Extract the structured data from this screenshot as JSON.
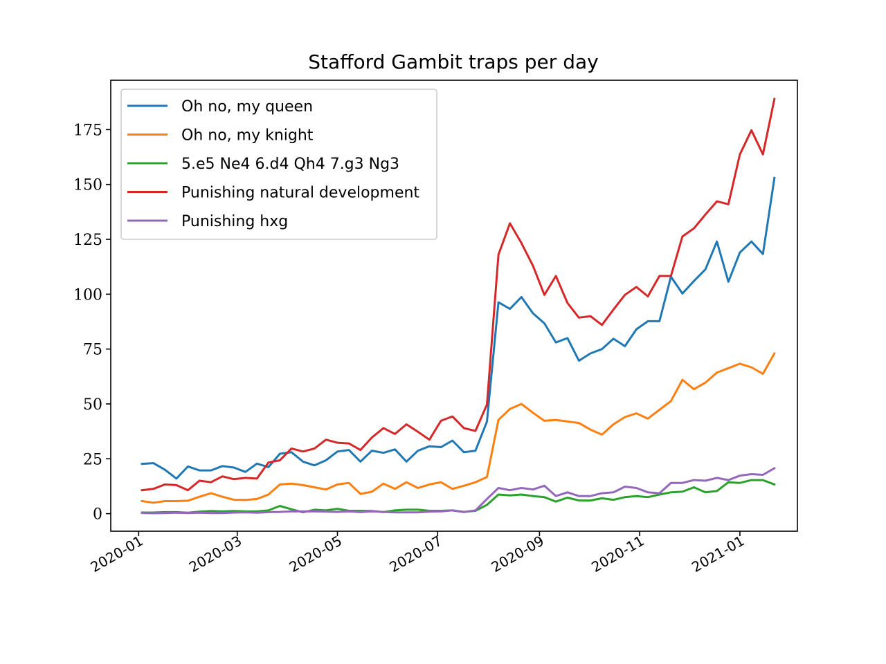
{
  "chart_data": {
    "type": "line",
    "title": "Stafford Gambit traps per day",
    "xlabel": "",
    "ylabel": "",
    "x_axis_type": "date",
    "xlim": [
      "2019-12-15",
      "2021-02-05"
    ],
    "ylim": [
      -8,
      197.5
    ],
    "x_ticks": [
      "2020-01-01",
      "2020-03-01",
      "2020-05-01",
      "2020-07-01",
      "2020-09-01",
      "2020-11-01",
      "2021-01-01"
    ],
    "x_tick_labels": [
      "2020-01",
      "2020-03",
      "2020-05",
      "2020-07",
      "2020-09",
      "2020-11",
      "2021-01"
    ],
    "y_ticks": [
      0,
      25,
      50,
      75,
      100,
      125,
      150,
      175
    ],
    "y_tick_labels": [
      "0",
      "25",
      "50",
      "75",
      "100",
      "125",
      "150",
      "175"
    ],
    "grid": false,
    "legend_position": "top-left",
    "x": [
      "2020-01-03",
      "2020-01-10",
      "2020-01-17",
      "2020-01-24",
      "2020-01-31",
      "2020-02-07",
      "2020-02-14",
      "2020-02-21",
      "2020-02-28",
      "2020-03-06",
      "2020-03-13",
      "2020-03-20",
      "2020-03-27",
      "2020-04-03",
      "2020-04-10",
      "2020-04-17",
      "2020-04-24",
      "2020-05-01",
      "2020-05-08",
      "2020-05-15",
      "2020-05-22",
      "2020-05-29",
      "2020-06-05",
      "2020-06-12",
      "2020-06-19",
      "2020-06-26",
      "2020-07-03",
      "2020-07-10",
      "2020-07-17",
      "2020-07-24",
      "2020-07-31",
      "2020-08-07",
      "2020-08-14",
      "2020-08-21",
      "2020-08-28",
      "2020-09-04",
      "2020-09-11",
      "2020-09-18",
      "2020-09-25",
      "2020-10-02",
      "2020-10-09",
      "2020-10-16",
      "2020-10-23",
      "2020-10-30",
      "2020-11-06",
      "2020-11-13",
      "2020-11-20",
      "2020-11-27",
      "2020-12-04",
      "2020-12-11",
      "2020-12-18",
      "2020-12-25",
      "2021-01-01",
      "2021-01-08",
      "2021-01-15",
      "2021-01-22"
    ],
    "series": [
      {
        "name": "Oh no, my queen",
        "color": "#1f77b4",
        "values": [
          22.7,
          23,
          20,
          16,
          21.5,
          19.7,
          19.7,
          21.7,
          21,
          19,
          22.8,
          21.2,
          27.3,
          28,
          23.7,
          22,
          24.3,
          28.3,
          29,
          23.7,
          28.7,
          27.7,
          29.3,
          23.7,
          28.7,
          30.7,
          30.3,
          33.3,
          28,
          28.7,
          42,
          96.3,
          93.3,
          98.7,
          91.3,
          86.7,
          78,
          80,
          69.7,
          73,
          75,
          79.7,
          76.3,
          84,
          87.7,
          87.7,
          108,
          100.3,
          106,
          111.3,
          124,
          105.7,
          119,
          124,
          118.3,
          153
        ]
      },
      {
        "name": "Oh no, my knight",
        "color": "#ff7f0e",
        "values": [
          5.7,
          5,
          5.7,
          5.7,
          5.9,
          7.7,
          9.3,
          7.7,
          6.3,
          6.2,
          6.7,
          8.7,
          13.3,
          13.7,
          13,
          12,
          11,
          13.3,
          14,
          9,
          10,
          13.7,
          11.3,
          14.3,
          11.7,
          13.3,
          14.3,
          11.3,
          12.7,
          14.3,
          16.7,
          42.7,
          47.7,
          50,
          46,
          42.3,
          42.7,
          42,
          41.3,
          38.3,
          36,
          40.7,
          44,
          45.7,
          43.3,
          47.3,
          51.3,
          61,
          56.7,
          59.7,
          64.3,
          66.3,
          68.3,
          66.7,
          63.7,
          73
        ]
      },
      {
        "name": "5.e5 Ne4 6.d4 Qh4 7.g3 Ng3",
        "color": "#2ca02c",
        "values": [
          0.5,
          0.5,
          0.7,
          0.7,
          0.4,
          0.9,
          1.2,
          1,
          1.2,
          1,
          1,
          1.5,
          3.5,
          2,
          0.6,
          1.8,
          1.5,
          2.2,
          1.3,
          1.3,
          1.2,
          0.7,
          1.5,
          1.8,
          1.8,
          1.3,
          1.3,
          1.5,
          0.8,
          1.3,
          4,
          8.7,
          8.3,
          8.7,
          8,
          7.5,
          5.5,
          7.3,
          6,
          6,
          7,
          6.3,
          7.5,
          8,
          7.5,
          8.7,
          9.7,
          10,
          12,
          9.7,
          10.3,
          14.3,
          14,
          15.3,
          15.3,
          13.3
        ]
      },
      {
        "name": "Punishing natural development",
        "color": "#d62728",
        "values": [
          10.7,
          11.3,
          13.3,
          13,
          10.7,
          15,
          14.3,
          17,
          15.7,
          16.3,
          16,
          23.3,
          24.3,
          29.7,
          28.3,
          29.7,
          33.7,
          32.3,
          32,
          29,
          34.7,
          39,
          36.3,
          40.7,
          37.3,
          33.7,
          42.3,
          44.3,
          39,
          37.7,
          49.7,
          118,
          132.3,
          123.3,
          113,
          99.7,
          108.3,
          96,
          89.3,
          90,
          86,
          93,
          99.7,
          103.3,
          99,
          108.3,
          108.3,
          126.3,
          130,
          136.3,
          142.3,
          141,
          163.7,
          174.7,
          163.7,
          189
        ]
      },
      {
        "name": "Punishing hxg",
        "color": "#9467bd",
        "values": [
          0.3,
          0.2,
          0.3,
          0.4,
          0.3,
          0.4,
          0.3,
          0.3,
          0.5,
          0.6,
          0.4,
          0.7,
          0.8,
          1,
          1,
          1,
          0.9,
          0.8,
          1,
          0.7,
          1,
          0.8,
          0.6,
          0.6,
          0.6,
          0.9,
          1,
          1.5,
          0.7,
          1.5,
          6.7,
          11.7,
          10.7,
          11.7,
          11,
          12.7,
          8,
          9.7,
          8,
          8,
          9.3,
          9.7,
          12.3,
          11.7,
          9.7,
          9.3,
          14,
          14,
          15.3,
          15,
          16.3,
          15.3,
          17.3,
          18,
          17.7,
          20.7
        ]
      }
    ]
  }
}
